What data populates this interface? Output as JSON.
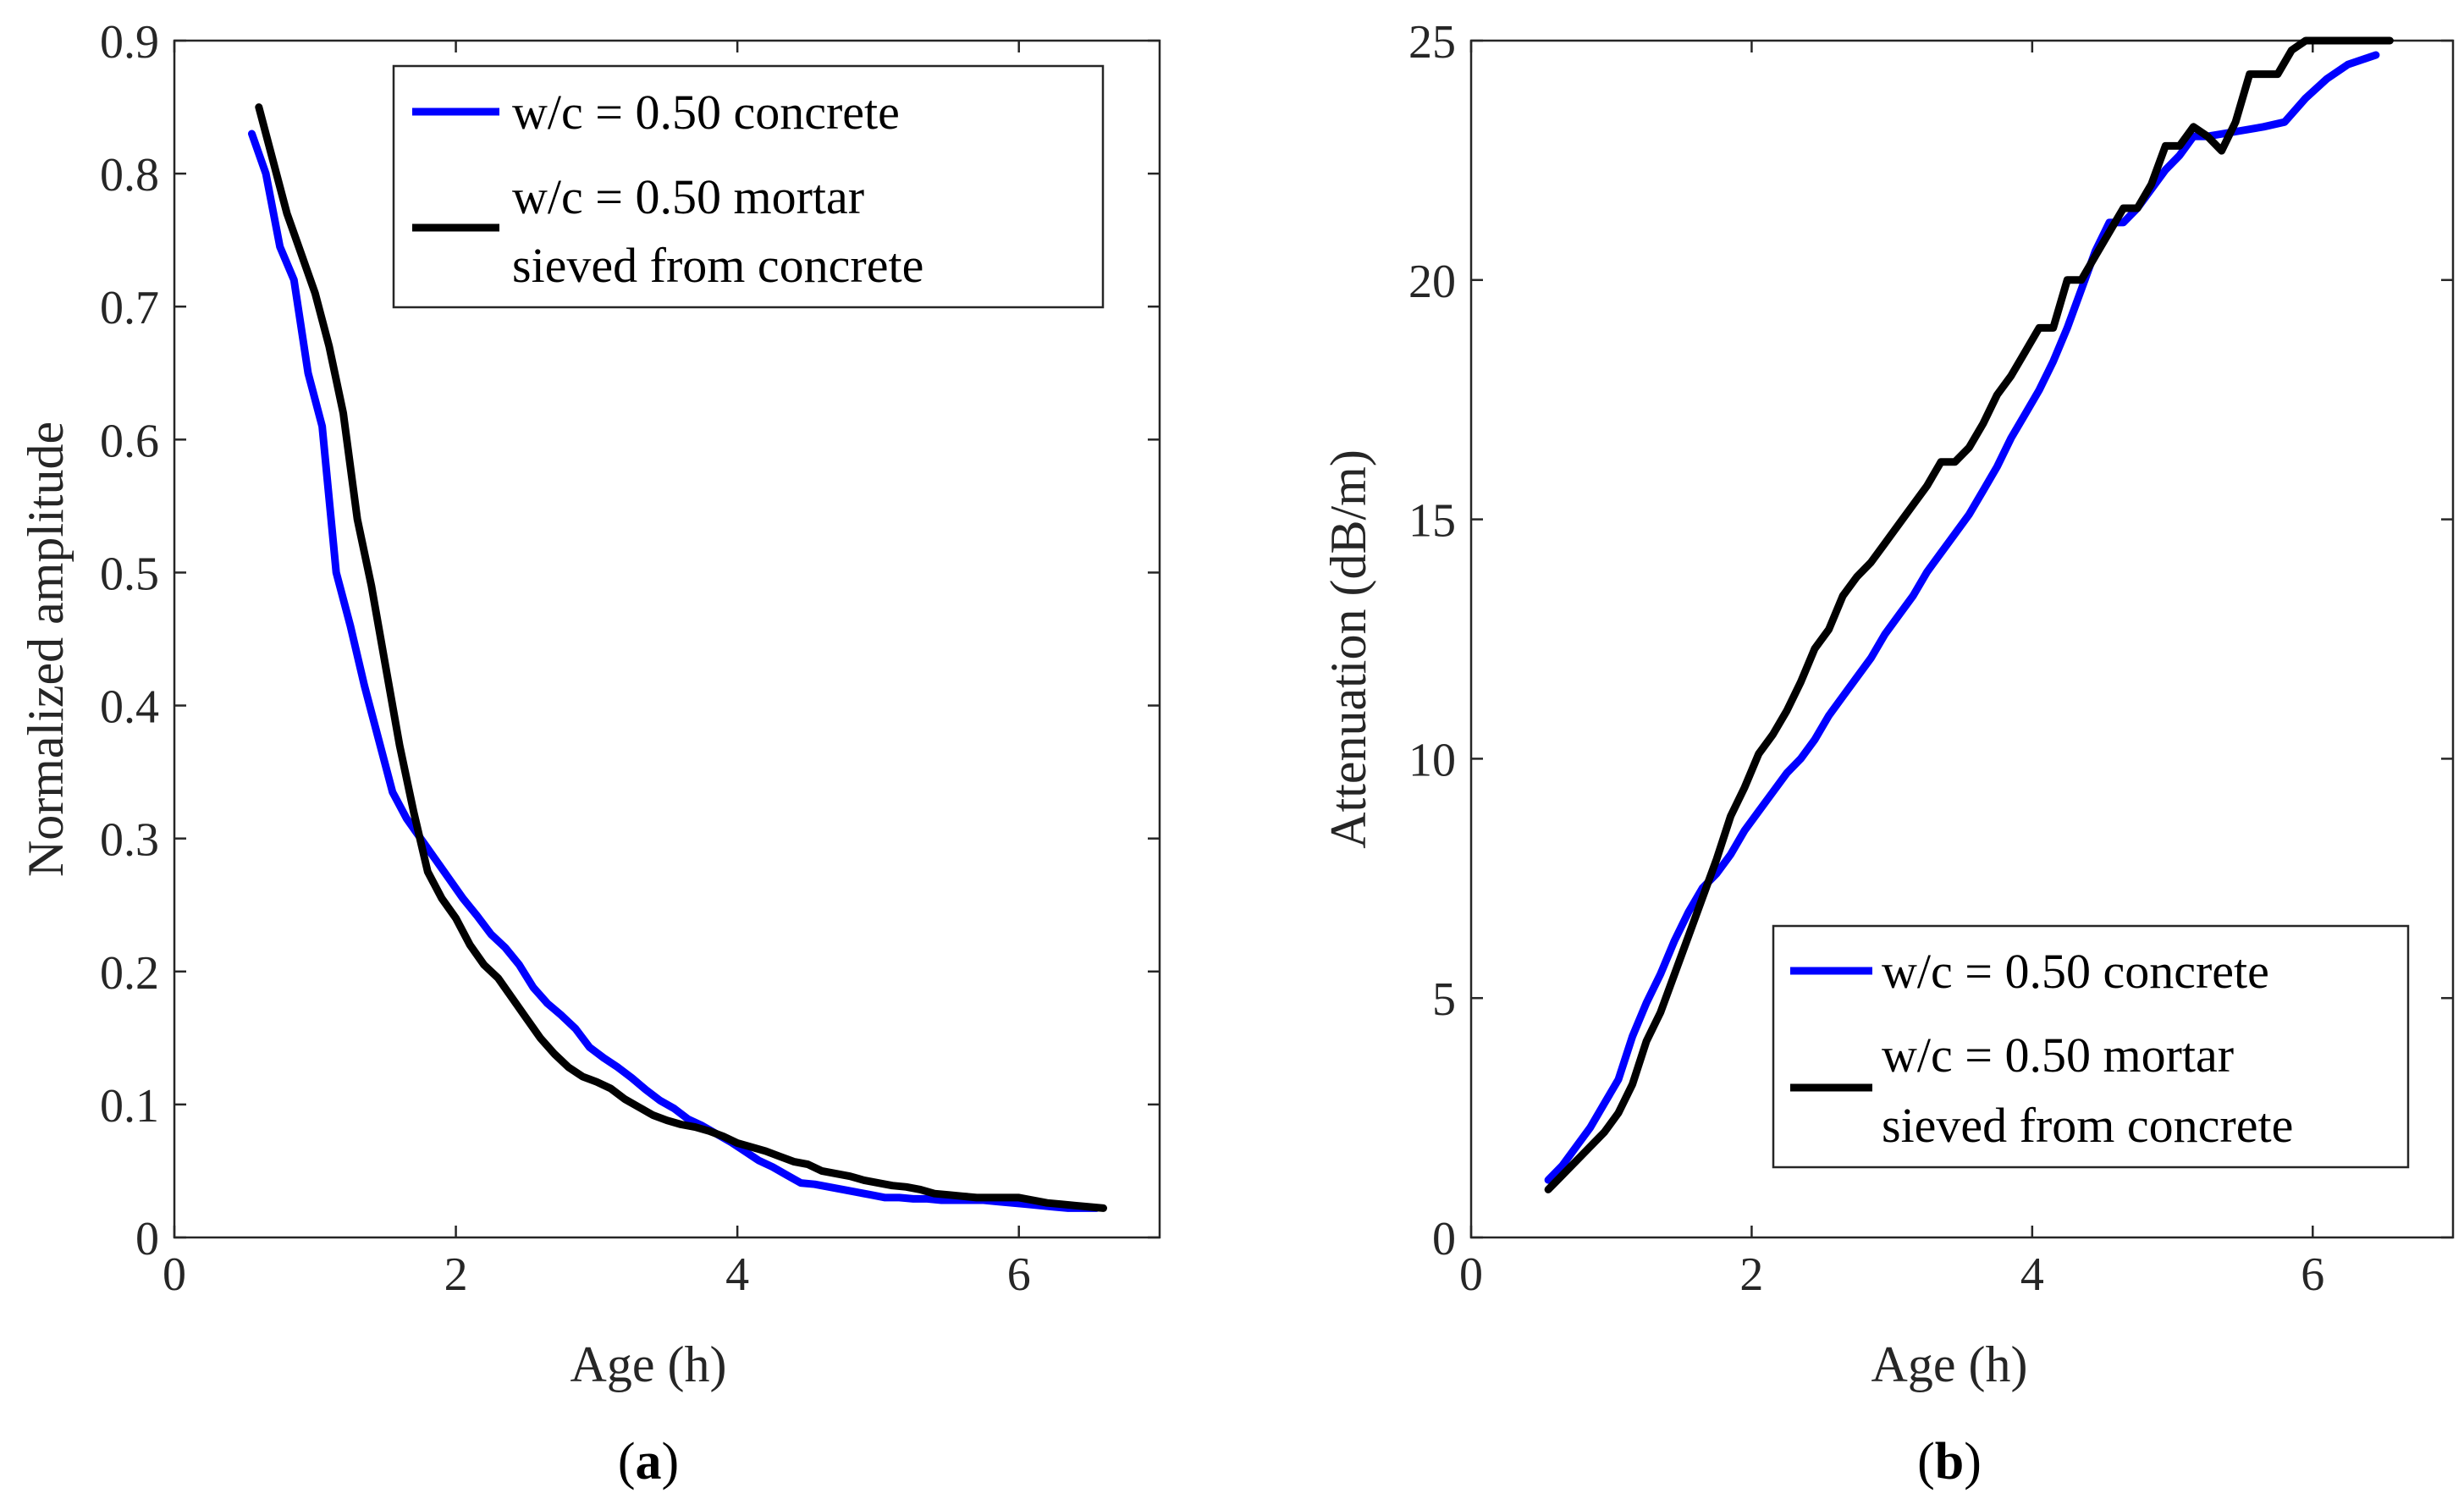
{
  "colors": {
    "concrete": "#0000ff",
    "mortar": "#000000"
  },
  "chart_data": [
    {
      "type": "line",
      "panel_label": "a",
      "title": "",
      "xlabel": "Age (h)",
      "ylabel": "Normalized amplitude",
      "xlim": [
        0,
        7
      ],
      "ylim": [
        0,
        0.9
      ],
      "xticks": [
        0,
        2,
        4,
        6
      ],
      "yticks": [
        0,
        0.1,
        0.2,
        0.3,
        0.4,
        0.5,
        0.6,
        0.7,
        0.8,
        0.9
      ],
      "xtick_labels": [
        "0",
        "2",
        "4",
        "6"
      ],
      "ytick_labels": [
        "0",
        "0.1",
        "0.2",
        "0.3",
        "0.4",
        "0.5",
        "0.6",
        "0.7",
        "0.8",
        "0.9"
      ],
      "legend_position": "top-right",
      "series": [
        {
          "name": "w/c = 0.50 concrete",
          "legend_lines": [
            "w/c = 0.50 concrete"
          ],
          "color": "#0000ff",
          "x": [
            0.55,
            0.65,
            0.75,
            0.85,
            0.95,
            1.05,
            1.15,
            1.25,
            1.35,
            1.45,
            1.55,
            1.65,
            1.75,
            1.85,
            1.95,
            2.05,
            2.15,
            2.25,
            2.35,
            2.45,
            2.55,
            2.65,
            2.75,
            2.85,
            2.95,
            3.05,
            3.15,
            3.25,
            3.35,
            3.45,
            3.55,
            3.65,
            3.75,
            3.85,
            3.95,
            4.05,
            4.15,
            4.25,
            4.35,
            4.45,
            4.55,
            4.65,
            4.75,
            4.85,
            4.95,
            5.05,
            5.15,
            5.25,
            5.35,
            5.45,
            5.55,
            5.65,
            5.75,
            5.85,
            5.95,
            6.05,
            6.15,
            6.25,
            6.35,
            6.45,
            6.55
          ],
          "y": [
            0.83,
            0.8,
            0.745,
            0.72,
            0.65,
            0.61,
            0.5,
            0.46,
            0.415,
            0.375,
            0.335,
            0.315,
            0.3,
            0.285,
            0.27,
            0.255,
            0.242,
            0.228,
            0.218,
            0.205,
            0.188,
            0.176,
            0.167,
            0.157,
            0.143,
            0.135,
            0.128,
            0.12,
            0.111,
            0.103,
            0.097,
            0.089,
            0.084,
            0.078,
            0.072,
            0.065,
            0.058,
            0.053,
            0.047,
            0.041,
            0.04,
            0.038,
            0.036,
            0.034,
            0.032,
            0.03,
            0.03,
            0.029,
            0.029,
            0.028,
            0.028,
            0.028,
            0.028,
            0.027,
            0.026,
            0.025,
            0.024,
            0.023,
            0.022,
            0.022,
            0.022
          ]
        },
        {
          "name": "w/c = 0.50 mortar sieved from concrete",
          "legend_lines": [
            "w/c = 0.50 mortar",
            "sieved from concrete"
          ],
          "color": "#000000",
          "x": [
            0.6,
            0.7,
            0.8,
            0.9,
            1.0,
            1.1,
            1.2,
            1.3,
            1.4,
            1.5,
            1.6,
            1.7,
            1.8,
            1.9,
            2.0,
            2.1,
            2.2,
            2.3,
            2.4,
            2.5,
            2.6,
            2.7,
            2.8,
            2.9,
            3.0,
            3.1,
            3.2,
            3.3,
            3.4,
            3.5,
            3.6,
            3.7,
            3.8,
            3.9,
            4.0,
            4.1,
            4.2,
            4.3,
            4.4,
            4.5,
            4.6,
            4.7,
            4.8,
            4.9,
            5.0,
            5.1,
            5.2,
            5.3,
            5.4,
            5.5,
            5.6,
            5.7,
            5.8,
            5.9,
            6.0,
            6.1,
            6.2,
            6.3,
            6.4,
            6.5,
            6.6
          ],
          "y": [
            0.85,
            0.81,
            0.77,
            0.74,
            0.71,
            0.67,
            0.62,
            0.54,
            0.49,
            0.43,
            0.37,
            0.32,
            0.275,
            0.255,
            0.24,
            0.22,
            0.205,
            0.195,
            0.18,
            0.165,
            0.15,
            0.138,
            0.128,
            0.121,
            0.117,
            0.112,
            0.104,
            0.098,
            0.092,
            0.088,
            0.085,
            0.083,
            0.08,
            0.076,
            0.071,
            0.068,
            0.065,
            0.061,
            0.057,
            0.055,
            0.05,
            0.048,
            0.046,
            0.043,
            0.041,
            0.039,
            0.038,
            0.036,
            0.033,
            0.032,
            0.031,
            0.03,
            0.03,
            0.03,
            0.03,
            0.028,
            0.026,
            0.025,
            0.024,
            0.023,
            0.022
          ]
        }
      ]
    },
    {
      "type": "line",
      "panel_label": "b",
      "title": "",
      "xlabel": "Age (h)",
      "ylabel": "Attenuation (dB/m)",
      "xlim": [
        0,
        7
      ],
      "ylim": [
        0,
        25
      ],
      "xticks": [
        0,
        2,
        4,
        6
      ],
      "yticks": [
        0,
        5,
        10,
        15,
        20,
        25
      ],
      "xtick_labels": [
        "0",
        "2",
        "4",
        "6"
      ],
      "ytick_labels": [
        "0",
        "5",
        "10",
        "15",
        "20",
        "25"
      ],
      "legend_position": "bottom-right",
      "series": [
        {
          "name": "w/c = 0.50 concrete",
          "legend_lines": [
            "w/c = 0.50 concrete"
          ],
          "color": "#0000ff",
          "x": [
            0.55,
            0.65,
            0.75,
            0.85,
            0.95,
            1.05,
            1.15,
            1.25,
            1.35,
            1.45,
            1.55,
            1.65,
            1.75,
            1.85,
            1.95,
            2.05,
            2.15,
            2.25,
            2.35,
            2.45,
            2.55,
            2.65,
            2.75,
            2.85,
            2.95,
            3.05,
            3.15,
            3.25,
            3.35,
            3.45,
            3.55,
            3.65,
            3.75,
            3.85,
            3.95,
            4.05,
            4.15,
            4.25,
            4.35,
            4.45,
            4.55,
            4.65,
            4.75,
            4.85,
            4.95,
            5.05,
            5.15,
            5.25,
            5.45,
            5.65,
            5.8,
            5.95,
            6.1,
            6.25,
            6.45
          ],
          "y": [
            1.2,
            1.5,
            1.9,
            2.3,
            2.8,
            3.3,
            4.2,
            4.9,
            5.5,
            6.2,
            6.8,
            7.3,
            7.6,
            8.0,
            8.5,
            8.9,
            9.3,
            9.7,
            10.0,
            10.4,
            10.9,
            11.3,
            11.7,
            12.1,
            12.6,
            13.0,
            13.4,
            13.9,
            14.3,
            14.7,
            15.1,
            15.6,
            16.1,
            16.7,
            17.2,
            17.7,
            18.3,
            19.0,
            19.8,
            20.6,
            21.2,
            21.2,
            21.5,
            21.9,
            22.3,
            22.6,
            23.0,
            23.0,
            23.1,
            23.2,
            23.3,
            23.8,
            24.2,
            24.5,
            24.7
          ]
        },
        {
          "name": "w/c = 0.50 mortar sieved from concrete",
          "legend_lines": [
            "w/c = 0.50 mortar",
            "sieved from concrete"
          ],
          "color": "#000000",
          "x": [
            0.55,
            0.65,
            0.75,
            0.85,
            0.95,
            1.05,
            1.15,
            1.25,
            1.35,
            1.45,
            1.55,
            1.65,
            1.75,
            1.85,
            1.95,
            2.05,
            2.15,
            2.25,
            2.35,
            2.45,
            2.55,
            2.65,
            2.75,
            2.85,
            2.95,
            3.05,
            3.15,
            3.25,
            3.35,
            3.45,
            3.55,
            3.65,
            3.75,
            3.85,
            3.95,
            4.05,
            4.15,
            4.25,
            4.35,
            4.45,
            4.55,
            4.65,
            4.75,
            4.85,
            4.95,
            5.05,
            5.15,
            5.25,
            5.35,
            5.45,
            5.55,
            5.65,
            5.75,
            5.85,
            5.95,
            6.05,
            6.15,
            6.25,
            6.35,
            6.45,
            6.55
          ],
          "y": [
            1.0,
            1.3,
            1.6,
            1.9,
            2.2,
            2.6,
            3.2,
            4.1,
            4.7,
            5.5,
            6.3,
            7.1,
            7.9,
            8.8,
            9.4,
            10.1,
            10.5,
            11.0,
            11.6,
            12.3,
            12.7,
            13.4,
            13.8,
            14.1,
            14.5,
            14.9,
            15.3,
            15.7,
            16.2,
            16.2,
            16.5,
            17.0,
            17.6,
            18.0,
            18.5,
            19.0,
            19.0,
            20.0,
            20.0,
            20.5,
            21.0,
            21.5,
            21.5,
            22.0,
            22.8,
            22.8,
            23.2,
            23.0,
            22.7,
            23.3,
            24.3,
            24.3,
            24.3,
            24.8,
            25.0,
            25.0,
            25.0,
            25.0,
            25.0,
            25.0,
            25.0
          ]
        }
      ]
    }
  ]
}
